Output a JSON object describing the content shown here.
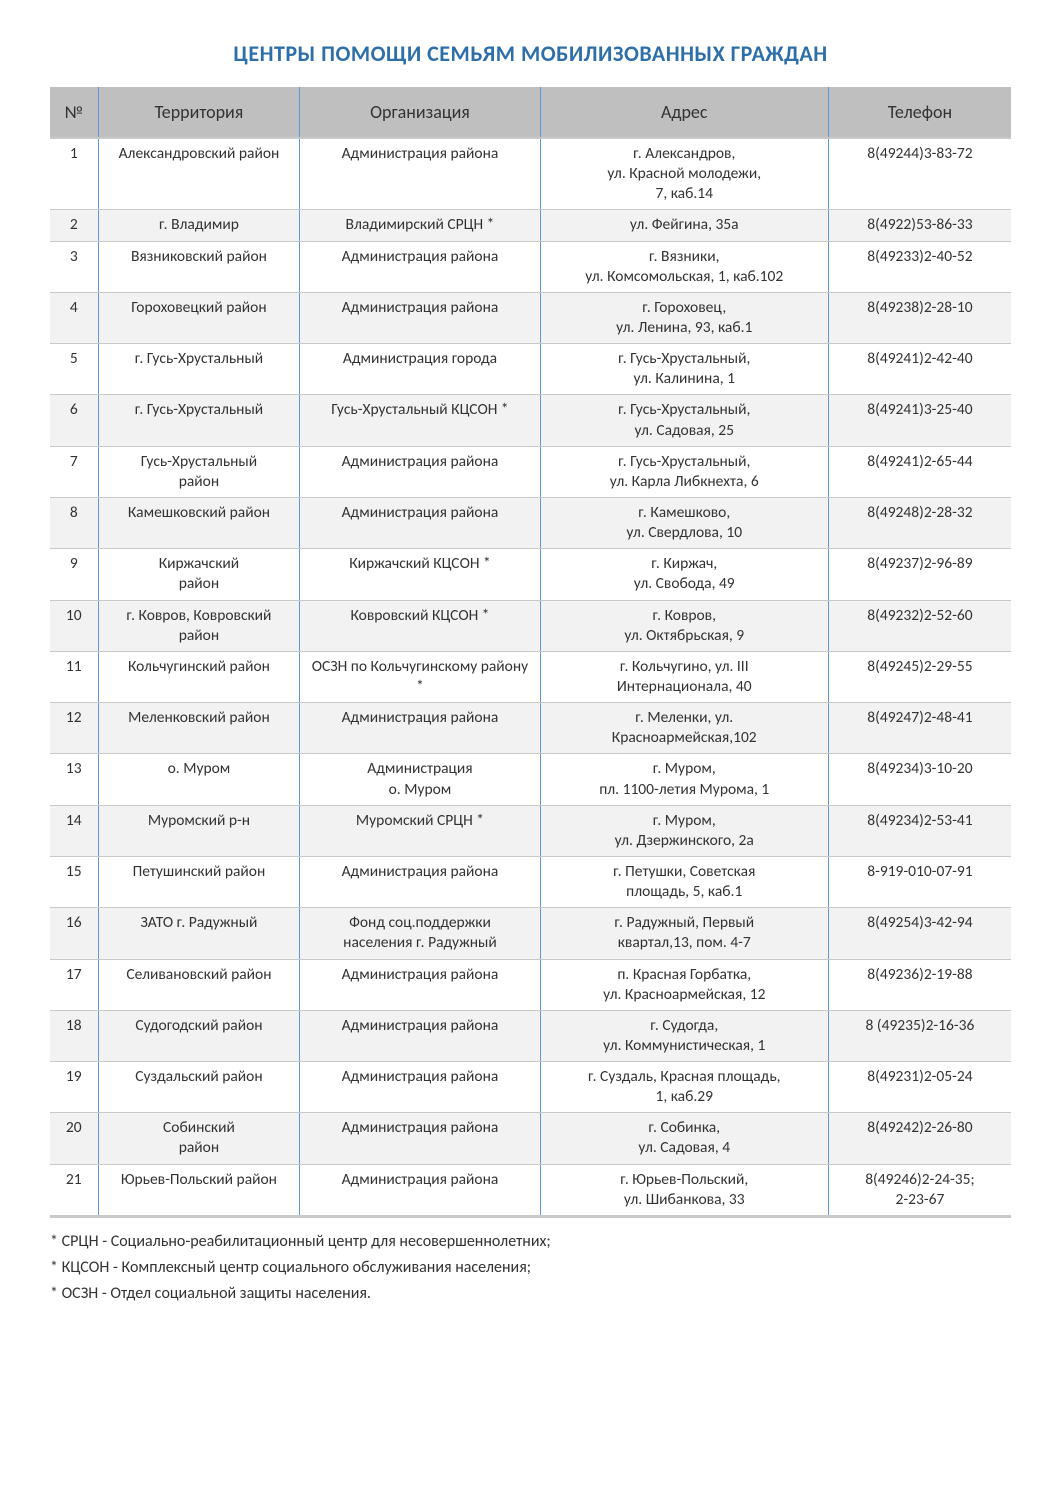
{
  "title": "ЦЕНТРЫ ПОМОЩИ СЕМЬЯМ МОБИЛИЗОВАННЫХ ГРАЖДАН",
  "columns": [
    "№",
    "Территория",
    "Организация",
    "Адрес",
    "Телефон"
  ],
  "rows": [
    {
      "n": "1",
      "terr": "Александровский район",
      "org": "Администрация района",
      "addr": "г. Александров,\nул. Красной молодежи,\n7, каб.14",
      "tel": "8(49244)3-83-72"
    },
    {
      "n": "2",
      "terr": "г. Владимир",
      "org": "Владимирский СРЦН *",
      "addr": "ул. Фейгина, 35а",
      "tel": "8(4922)53-86-33"
    },
    {
      "n": "3",
      "terr": "Вязниковский район",
      "org": "Администрация района",
      "addr": "г. Вязники,\nул. Комсомольская, 1, каб.102",
      "tel": "8(49233)2-40-52"
    },
    {
      "n": "4",
      "terr": "Гороховецкий район",
      "org": "Администрация района",
      "addr": "г. Гороховец,\nул. Ленина, 93, каб.1",
      "tel": "8(49238)2-28-10"
    },
    {
      "n": "5",
      "terr": "г. Гусь-Хрустальный",
      "org": "Администрация города",
      "addr": "г. Гусь-Хрустальный,\nул. Калинина, 1",
      "tel": "8(49241)2-42-40"
    },
    {
      "n": "6",
      "terr": "г. Гусь-Хрустальный",
      "org": "Гусь-Хрустальный КЦСОН *",
      "addr": "г. Гусь-Хрустальный,\nул. Садовая, 25",
      "tel": "8(49241)3-25-40"
    },
    {
      "n": "7",
      "terr": "Гусь-Хрустальный\nрайон",
      "org": "Администрация района",
      "addr": "г. Гусь-Хрустальный,\nул. Карла Либкнехта, 6",
      "tel": "8(49241)2-65-44"
    },
    {
      "n": "8",
      "terr": "Камешковский район",
      "org": "Администрация района",
      "addr": "г. Камешково,\nул. Свердлова, 10",
      "tel": "8(49248)2-28-32"
    },
    {
      "n": "9",
      "terr": "Киржачский\nрайон",
      "org": "Киржачский КЦСОН *",
      "addr": "г. Киржач,\nул. Свобода, 49",
      "tel": "8(49237)2-96-89"
    },
    {
      "n": "10",
      "terr": "г. Ковров, Ковровский\nрайон",
      "org": "Ковровский КЦСОН *",
      "addr": "г. Ковров,\nул. Октябрьская, 9",
      "tel": "8(49232)2-52-60"
    },
    {
      "n": "11",
      "terr": "Кольчугинский район",
      "org": "ОСЗН по Кольчугинскому району *",
      "addr": "г. Кольчугино, ул. III\nИнтернационала, 40",
      "tel": "8(49245)2-29-55"
    },
    {
      "n": "12",
      "terr": "Меленковский район",
      "org": "Администрация района",
      "addr": "г. Меленки, ул.\nКрасноармейская,102",
      "tel": "8(49247)2-48-41"
    },
    {
      "n": "13",
      "terr": "о. Муром",
      "org": "Администрация\nо. Муром",
      "addr": "г. Муром,\nпл. 1100-летия Мурома, 1",
      "tel": "8(49234)3-10-20"
    },
    {
      "n": "14",
      "terr": "Муромский р-н",
      "org": "Муромский СРЦН *",
      "addr": "г. Муром,\nул. Дзержинского, 2а",
      "tel": "8(49234)2-53-41"
    },
    {
      "n": "15",
      "terr": "Петушинский район",
      "org": "Администрация района",
      "addr": "г. Петушки, Советская\nплощадь, 5, каб.1",
      "tel": "8-919-010-07-91"
    },
    {
      "n": "16",
      "terr": "ЗАТО г. Радужный",
      "org": "Фонд соц.поддержки\nнаселения г. Радужный",
      "addr": "г. Радужный, Первый\nквартал,13, пом. 4-7",
      "tel": "8(49254)3-42-94"
    },
    {
      "n": "17",
      "terr": "Селивановский район",
      "org": "Администрация района",
      "addr": "п. Красная Горбатка,\nул. Красноармейская, 12",
      "tel": "8(49236)2-19-88"
    },
    {
      "n": "18",
      "terr": "Судогодский район",
      "org": "Администрация района",
      "addr": "г. Судогда,\nул. Коммунистическая, 1",
      "tel": "8 (49235)2-16-36"
    },
    {
      "n": "19",
      "terr": "Суздальский район",
      "org": "Администрация района",
      "addr": "г. Суздаль, Красная площадь,\n1, каб.29",
      "tel": "8(49231)2-05-24"
    },
    {
      "n": "20",
      "terr": "Собинский\nрайон",
      "org": "Администрация района",
      "addr": "г. Собинка,\nул. Садовая, 4",
      "tel": "8(49242)2-26-80"
    },
    {
      "n": "21",
      "terr": "Юрьев-Польский район",
      "org": "Администрация района",
      "addr": "г. Юрьев-Польский,\nул. Шибанкова, 33",
      "tel": "8(49246)2-24-35;\n2-23-67"
    }
  ],
  "footnotes": [
    "* СРЦН - Социально-реабилитационный центр для несовершеннолетних;",
    "* КЦСОН - Комплексный центр социального обслуживания населения;",
    "* ОСЗН - Отдел социальной защиты населения."
  ],
  "style": {
    "title_color": "#2e6faa",
    "header_bg": "#bfbfbf",
    "even_row_bg": "#f2f2f2",
    "border_vertical": "#5b9bd5",
    "border_horizontal": "#c9c9c9",
    "body_fontsize": 16,
    "title_fontsize": 22
  }
}
